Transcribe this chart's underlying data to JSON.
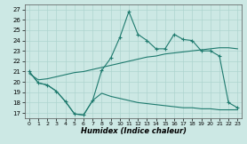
{
  "xlabel": "Humidex (Indice chaleur)",
  "background_color": "#cce8e4",
  "line_color": "#1e7a6e",
  "grid_color": "#aed4cf",
  "xlim": [
    -0.5,
    23.5
  ],
  "ylim": [
    16.5,
    27.5
  ],
  "xticks": [
    0,
    1,
    2,
    3,
    4,
    5,
    6,
    7,
    8,
    9,
    10,
    11,
    12,
    13,
    14,
    15,
    16,
    17,
    18,
    19,
    20,
    21,
    22,
    23
  ],
  "yticks": [
    17,
    18,
    19,
    20,
    21,
    22,
    23,
    24,
    25,
    26,
    27
  ],
  "line1_x": [
    0,
    1,
    2,
    3,
    4,
    5,
    6,
    7,
    8,
    9,
    10,
    11,
    12,
    13,
    14,
    15,
    16,
    17,
    18,
    19,
    20,
    21,
    22,
    23
  ],
  "line1_y": [
    21.0,
    19.9,
    19.7,
    19.1,
    18.1,
    16.9,
    16.8,
    18.2,
    21.1,
    22.3,
    24.3,
    26.8,
    24.6,
    24.0,
    23.2,
    23.2,
    24.6,
    24.1,
    24.0,
    23.0,
    23.0,
    22.5,
    18.0,
    17.5
  ],
  "line2_x": [
    0,
    1,
    2,
    3,
    4,
    5,
    6,
    7,
    8,
    9,
    10,
    11,
    12,
    13,
    14,
    15,
    16,
    17,
    18,
    19,
    20,
    21,
    22,
    23
  ],
  "line2_y": [
    20.8,
    20.2,
    20.3,
    20.5,
    20.7,
    20.9,
    21.0,
    21.2,
    21.4,
    21.6,
    21.8,
    22.0,
    22.2,
    22.4,
    22.5,
    22.7,
    22.8,
    22.9,
    23.0,
    23.1,
    23.2,
    23.3,
    23.3,
    23.2
  ],
  "line3_x": [
    0,
    1,
    2,
    3,
    4,
    5,
    6,
    7,
    8,
    9,
    10,
    11,
    12,
    13,
    14,
    15,
    16,
    17,
    18,
    19,
    20,
    21,
    22,
    23
  ],
  "line3_y": [
    21.0,
    19.9,
    19.7,
    19.1,
    18.1,
    16.9,
    16.8,
    18.2,
    18.9,
    18.6,
    18.4,
    18.2,
    18.0,
    17.9,
    17.8,
    17.7,
    17.6,
    17.5,
    17.5,
    17.4,
    17.4,
    17.3,
    17.3,
    17.3
  ]
}
